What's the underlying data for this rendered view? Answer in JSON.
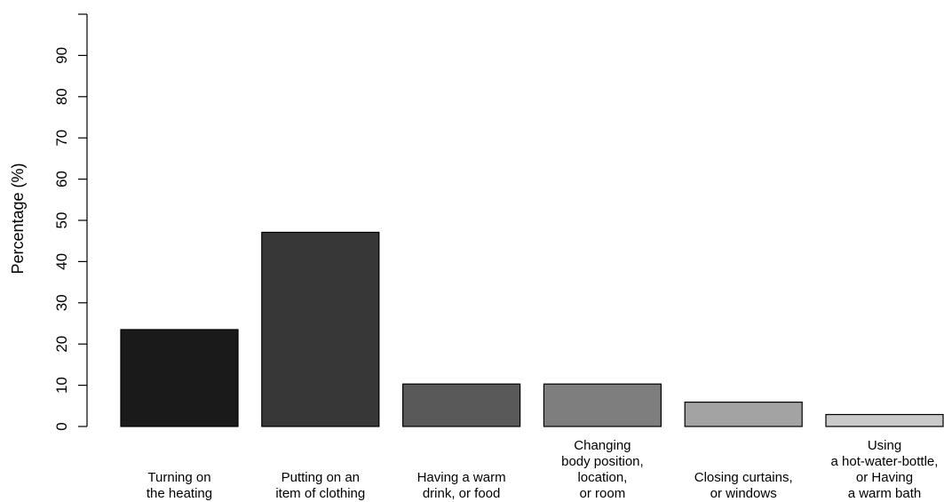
{
  "chart_data": {
    "type": "bar",
    "title": "",
    "xlabel": "",
    "ylabel": "Percentage (%)",
    "ylim": [
      0,
      100
    ],
    "yticks": [
      0,
      10,
      20,
      30,
      40,
      50,
      60,
      70,
      80,
      90
    ],
    "grid": false,
    "categories": [
      [
        "Turning on",
        "the heating"
      ],
      [
        "Putting on an",
        "item of clothing"
      ],
      [
        "Having a warm",
        "drink, or food"
      ],
      [
        "Changing",
        "body position,",
        "location,",
        "or room"
      ],
      [
        "Closing curtains,",
        "or windows"
      ],
      [
        "Using",
        "a hot-water-bottle,",
        "or Having",
        "a warm bath"
      ]
    ],
    "values": [
      23.5,
      47.1,
      10.3,
      10.3,
      5.9,
      2.9
    ],
    "colors": [
      "#1a1a1a",
      "#373737",
      "#595959",
      "#7e7e7e",
      "#a3a3a3",
      "#cacaca"
    ]
  }
}
